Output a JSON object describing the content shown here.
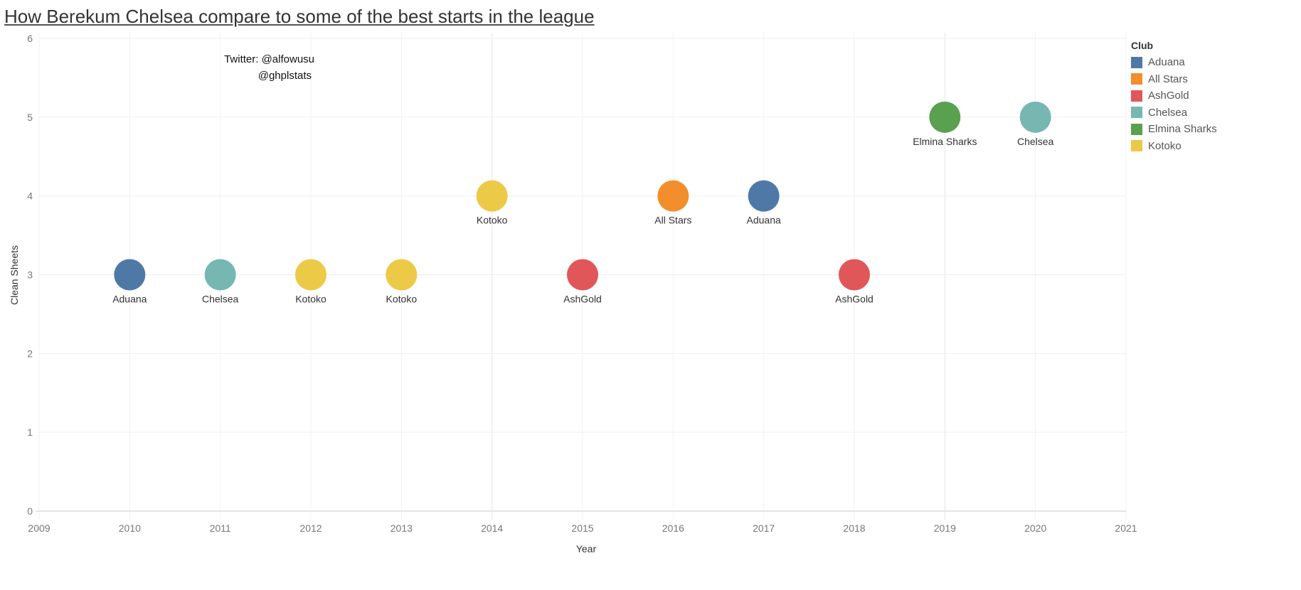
{
  "chart_data": {
    "type": "scatter",
    "title": "How Berekum Chelsea compare to some of the best starts in the league",
    "annotation": [
      "Twitter: @alfowusu",
      "@ghplstats"
    ],
    "xlabel": "Year",
    "ylabel": "Clean Sheets",
    "xlim": [
      2009,
      2021
    ],
    "ylim": [
      0,
      6
    ],
    "xticks": [
      2009,
      2010,
      2011,
      2012,
      2013,
      2014,
      2015,
      2016,
      2017,
      2018,
      2019,
      2020,
      2021
    ],
    "yticks": [
      0,
      1,
      2,
      3,
      4,
      5,
      6
    ],
    "grid": true,
    "legend": {
      "title": "Club",
      "placement": "right",
      "entries": [
        {
          "name": "Aduana",
          "color": "#4e79a7"
        },
        {
          "name": "All Stars",
          "color": "#f28e2b"
        },
        {
          "name": "AshGold",
          "color": "#e15759"
        },
        {
          "name": "Chelsea",
          "color": "#76b7b2"
        },
        {
          "name": "Elmina Sharks",
          "color": "#59a14f"
        },
        {
          "name": "Kotoko",
          "color": "#edc948"
        }
      ]
    },
    "points": [
      {
        "x": 2010,
        "y": 3,
        "club": "Aduana"
      },
      {
        "x": 2011,
        "y": 3,
        "club": "Chelsea"
      },
      {
        "x": 2012,
        "y": 3,
        "club": "Kotoko"
      },
      {
        "x": 2013,
        "y": 3,
        "club": "Kotoko"
      },
      {
        "x": 2014,
        "y": 4,
        "club": "Kotoko"
      },
      {
        "x": 2015,
        "y": 3,
        "club": "AshGold"
      },
      {
        "x": 2016,
        "y": 4,
        "club": "All Stars"
      },
      {
        "x": 2017,
        "y": 4,
        "club": "Aduana"
      },
      {
        "x": 2018,
        "y": 3,
        "club": "AshGold"
      },
      {
        "x": 2019,
        "y": 5,
        "club": "Elmina Sharks"
      },
      {
        "x": 2020,
        "y": 5,
        "club": "Chelsea"
      }
    ]
  }
}
